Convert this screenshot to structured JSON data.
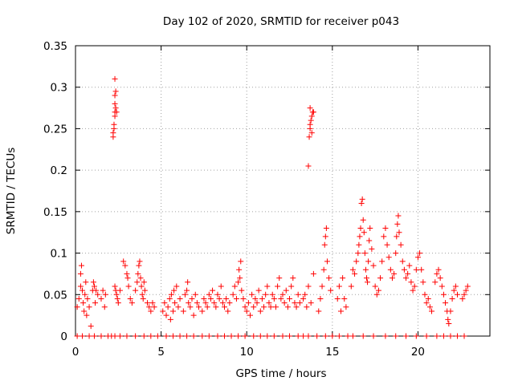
{
  "chart_data": {
    "type": "scatter",
    "title": "Day 102 of 2020, SRMTID for receiver p043",
    "xlabel": "GPS time / hours",
    "ylabel": "SRMTID / TECUs",
    "xlim": [
      0,
      24.2
    ],
    "ylim": [
      0,
      0.35
    ],
    "xticks": [
      0,
      5,
      10,
      15,
      20
    ],
    "xtick_labels": [
      "0",
      "5",
      "10",
      "15",
      "20"
    ],
    "yticks": [
      0,
      0.05,
      0.1,
      0.15,
      0.2,
      0.25,
      0.3,
      0.35
    ],
    "ytick_labels": [
      "0",
      "0.05",
      "0.1",
      "0.15",
      "0.2",
      "0.25",
      "0.3",
      "0.35"
    ],
    "grid": true,
    "marker": "+",
    "color": "#ff0000",
    "series": [
      {
        "name": "SRMTID",
        "points": [
          [
            0.1,
            0.035
          ],
          [
            0.2,
            0.045
          ],
          [
            0.3,
            0.06
          ],
          [
            0.3,
            0.075
          ],
          [
            0.35,
            0.085
          ],
          [
            0.4,
            0.055
          ],
          [
            0.45,
            0.04
          ],
          [
            0.5,
            0.03
          ],
          [
            0.55,
            0.05
          ],
          [
            0.6,
            0.065
          ],
          [
            0.65,
            0.025
          ],
          [
            0.7,
            0.045
          ],
          [
            0.8,
            0.035
          ],
          [
            0.9,
            0.012
          ],
          [
            1.0,
            0.055
          ],
          [
            1.05,
            0.065
          ],
          [
            1.1,
            0.06
          ],
          [
            1.15,
            0.04
          ],
          [
            1.2,
            0.055
          ],
          [
            1.3,
            0.05
          ],
          [
            1.5,
            0.045
          ],
          [
            1.6,
            0.055
          ],
          [
            1.7,
            0.035
          ],
          [
            1.75,
            0.05
          ],
          [
            2.2,
            0.24
          ],
          [
            2.2,
            0.245
          ],
          [
            2.25,
            0.25
          ],
          [
            2.25,
            0.255
          ],
          [
            2.3,
            0.265
          ],
          [
            2.3,
            0.27
          ],
          [
            2.35,
            0.275
          ],
          [
            2.3,
            0.28
          ],
          [
            2.3,
            0.29
          ],
          [
            2.35,
            0.295
          ],
          [
            2.3,
            0.31
          ],
          [
            2.4,
            0.27
          ],
          [
            2.3,
            0.06
          ],
          [
            2.35,
            0.055
          ],
          [
            2.4,
            0.05
          ],
          [
            2.45,
            0.045
          ],
          [
            2.5,
            0.04
          ],
          [
            2.6,
            0.055
          ],
          [
            2.8,
            0.09
          ],
          [
            2.9,
            0.085
          ],
          [
            3.0,
            0.075
          ],
          [
            3.05,
            0.07
          ],
          [
            3.1,
            0.06
          ],
          [
            3.2,
            0.045
          ],
          [
            3.3,
            0.04
          ],
          [
            3.5,
            0.055
          ],
          [
            3.6,
            0.065
          ],
          [
            3.65,
            0.075
          ],
          [
            3.7,
            0.085
          ],
          [
            3.75,
            0.09
          ],
          [
            3.8,
            0.07
          ],
          [
            3.85,
            0.06
          ],
          [
            3.9,
            0.05
          ],
          [
            3.95,
            0.045
          ],
          [
            4.0,
            0.065
          ],
          [
            4.05,
            0.055
          ],
          [
            4.2,
            0.04
          ],
          [
            4.3,
            0.035
          ],
          [
            4.4,
            0.03
          ],
          [
            4.5,
            0.04
          ],
          [
            4.6,
            0.035
          ],
          [
            5.1,
            0.03
          ],
          [
            5.2,
            0.04
          ],
          [
            5.3,
            0.025
          ],
          [
            5.4,
            0.035
          ],
          [
            5.5,
            0.045
          ],
          [
            5.55,
            0.02
          ],
          [
            5.6,
            0.05
          ],
          [
            5.7,
            0.03
          ],
          [
            5.75,
            0.055
          ],
          [
            5.8,
            0.04
          ],
          [
            5.9,
            0.06
          ],
          [
            6.0,
            0.035
          ],
          [
            6.1,
            0.045
          ],
          [
            6.3,
            0.03
          ],
          [
            6.4,
            0.05
          ],
          [
            6.5,
            0.055
          ],
          [
            6.55,
            0.065
          ],
          [
            6.6,
            0.04
          ],
          [
            6.7,
            0.035
          ],
          [
            6.8,
            0.045
          ],
          [
            6.9,
            0.025
          ],
          [
            7.0,
            0.05
          ],
          [
            7.1,
            0.04
          ],
          [
            7.2,
            0.035
          ],
          [
            7.4,
            0.03
          ],
          [
            7.5,
            0.045
          ],
          [
            7.6,
            0.04
          ],
          [
            7.7,
            0.035
          ],
          [
            7.8,
            0.05
          ],
          [
            7.9,
            0.045
          ],
          [
            8.0,
            0.055
          ],
          [
            8.1,
            0.04
          ],
          [
            8.2,
            0.035
          ],
          [
            8.3,
            0.05
          ],
          [
            8.4,
            0.045
          ],
          [
            8.5,
            0.06
          ],
          [
            8.6,
            0.04
          ],
          [
            8.7,
            0.035
          ],
          [
            8.8,
            0.045
          ],
          [
            8.9,
            0.03
          ],
          [
            9.0,
            0.04
          ],
          [
            9.2,
            0.05
          ],
          [
            9.3,
            0.06
          ],
          [
            9.4,
            0.045
          ],
          [
            9.5,
            0.065
          ],
          [
            9.55,
            0.08
          ],
          [
            9.6,
            0.07
          ],
          [
            9.65,
            0.09
          ],
          [
            9.7,
            0.055
          ],
          [
            9.8,
            0.045
          ],
          [
            9.9,
            0.035
          ],
          [
            10.0,
            0.03
          ],
          [
            10.1,
            0.04
          ],
          [
            10.2,
            0.025
          ],
          [
            10.3,
            0.05
          ],
          [
            10.4,
            0.035
          ],
          [
            10.5,
            0.045
          ],
          [
            10.6,
            0.04
          ],
          [
            10.7,
            0.055
          ],
          [
            10.8,
            0.03
          ],
          [
            10.9,
            0.045
          ],
          [
            11.0,
            0.035
          ],
          [
            11.1,
            0.05
          ],
          [
            11.2,
            0.06
          ],
          [
            11.3,
            0.04
          ],
          [
            11.4,
            0.035
          ],
          [
            11.5,
            0.05
          ],
          [
            11.6,
            0.045
          ],
          [
            11.7,
            0.035
          ],
          [
            11.8,
            0.06
          ],
          [
            11.9,
            0.07
          ],
          [
            12.0,
            0.045
          ],
          [
            12.1,
            0.05
          ],
          [
            12.2,
            0.04
          ],
          [
            12.3,
            0.055
          ],
          [
            12.4,
            0.035
          ],
          [
            12.5,
            0.045
          ],
          [
            12.6,
            0.06
          ],
          [
            12.7,
            0.07
          ],
          [
            12.8,
            0.04
          ],
          [
            12.9,
            0.035
          ],
          [
            13.0,
            0.05
          ],
          [
            13.1,
            0.04
          ],
          [
            13.3,
            0.045
          ],
          [
            13.4,
            0.05
          ],
          [
            13.5,
            0.035
          ],
          [
            13.6,
            0.06
          ],
          [
            13.75,
            0.04
          ],
          [
            13.9,
            0.075
          ],
          [
            13.6,
            0.205
          ],
          [
            13.65,
            0.24
          ],
          [
            13.7,
            0.25
          ],
          [
            13.7,
            0.255
          ],
          [
            13.75,
            0.26
          ],
          [
            13.8,
            0.265
          ],
          [
            13.85,
            0.27
          ],
          [
            13.7,
            0.275
          ],
          [
            13.8,
            0.245
          ],
          [
            13.9,
            0.27
          ],
          [
            14.2,
            0.03
          ],
          [
            14.3,
            0.045
          ],
          [
            14.4,
            0.06
          ],
          [
            14.5,
            0.08
          ],
          [
            14.55,
            0.11
          ],
          [
            14.6,
            0.12
          ],
          [
            14.65,
            0.13
          ],
          [
            14.7,
            0.09
          ],
          [
            14.8,
            0.07
          ],
          [
            14.9,
            0.055
          ],
          [
            15.3,
            0.045
          ],
          [
            15.4,
            0.06
          ],
          [
            15.5,
            0.03
          ],
          [
            15.6,
            0.07
          ],
          [
            15.7,
            0.045
          ],
          [
            15.8,
            0.035
          ],
          [
            16.1,
            0.06
          ],
          [
            16.2,
            0.08
          ],
          [
            16.3,
            0.075
          ],
          [
            16.4,
            0.09
          ],
          [
            16.5,
            0.1
          ],
          [
            16.55,
            0.11
          ],
          [
            16.6,
            0.12
          ],
          [
            16.65,
            0.13
          ],
          [
            16.7,
            0.16
          ],
          [
            16.75,
            0.165
          ],
          [
            16.8,
            0.14
          ],
          [
            16.85,
            0.125
          ],
          [
            16.9,
            0.1
          ],
          [
            16.95,
            0.08
          ],
          [
            17.0,
            0.07
          ],
          [
            17.05,
            0.065
          ],
          [
            17.1,
            0.09
          ],
          [
            17.15,
            0.115
          ],
          [
            17.2,
            0.13
          ],
          [
            17.3,
            0.105
          ],
          [
            17.4,
            0.085
          ],
          [
            17.5,
            0.06
          ],
          [
            17.6,
            0.05
          ],
          [
            17.7,
            0.055
          ],
          [
            17.8,
            0.07
          ],
          [
            17.9,
            0.09
          ],
          [
            18.0,
            0.12
          ],
          [
            18.1,
            0.13
          ],
          [
            18.2,
            0.11
          ],
          [
            18.3,
            0.095
          ],
          [
            18.4,
            0.08
          ],
          [
            18.5,
            0.07
          ],
          [
            18.6,
            0.075
          ],
          [
            18.7,
            0.1
          ],
          [
            18.75,
            0.12
          ],
          [
            18.8,
            0.135
          ],
          [
            18.85,
            0.145
          ],
          [
            18.9,
            0.125
          ],
          [
            19.0,
            0.11
          ],
          [
            19.1,
            0.09
          ],
          [
            19.2,
            0.08
          ],
          [
            19.3,
            0.07
          ],
          [
            19.4,
            0.075
          ],
          [
            19.5,
            0.085
          ],
          [
            19.6,
            0.065
          ],
          [
            19.7,
            0.055
          ],
          [
            19.8,
            0.06
          ],
          [
            19.9,
            0.08
          ],
          [
            20.0,
            0.095
          ],
          [
            20.1,
            0.1
          ],
          [
            20.2,
            0.08
          ],
          [
            20.3,
            0.065
          ],
          [
            20.4,
            0.05
          ],
          [
            20.5,
            0.04
          ],
          [
            20.6,
            0.045
          ],
          [
            20.7,
            0.035
          ],
          [
            20.8,
            0.03
          ],
          [
            21.0,
            0.065
          ],
          [
            21.1,
            0.075
          ],
          [
            21.2,
            0.08
          ],
          [
            21.3,
            0.07
          ],
          [
            21.4,
            0.06
          ],
          [
            21.5,
            0.05
          ],
          [
            21.6,
            0.04
          ],
          [
            21.7,
            0.03
          ],
          [
            21.75,
            0.02
          ],
          [
            21.8,
            0.015
          ],
          [
            21.9,
            0.03
          ],
          [
            22.0,
            0.045
          ],
          [
            22.1,
            0.055
          ],
          [
            22.2,
            0.06
          ],
          [
            22.3,
            0.05
          ],
          [
            22.6,
            0.045
          ],
          [
            22.7,
            0.05
          ],
          [
            22.8,
            0.055
          ],
          [
            22.9,
            0.06
          ],
          [
            0.1,
            0.0
          ],
          [
            0.4,
            0.0
          ],
          [
            0.8,
            0.0
          ],
          [
            1.1,
            0.0
          ],
          [
            1.5,
            0.0
          ],
          [
            1.9,
            0.0
          ],
          [
            2.1,
            0.0
          ],
          [
            2.3,
            0.0
          ],
          [
            2.6,
            0.0
          ],
          [
            3.0,
            0.0
          ],
          [
            3.5,
            0.0
          ],
          [
            4.0,
            0.0
          ],
          [
            4.4,
            0.0
          ],
          [
            4.8,
            0.0
          ],
          [
            5.3,
            0.0
          ],
          [
            5.7,
            0.0
          ],
          [
            6.1,
            0.0
          ],
          [
            6.5,
            0.0
          ],
          [
            6.9,
            0.0
          ],
          [
            7.4,
            0.0
          ],
          [
            7.8,
            0.0
          ],
          [
            8.3,
            0.0
          ],
          [
            8.7,
            0.0
          ],
          [
            9.1,
            0.0
          ],
          [
            9.5,
            0.0
          ],
          [
            9.9,
            0.0
          ],
          [
            10.4,
            0.0
          ],
          [
            10.8,
            0.0
          ],
          [
            11.2,
            0.0
          ],
          [
            11.6,
            0.0
          ],
          [
            12.1,
            0.0
          ],
          [
            12.5,
            0.0
          ],
          [
            13.0,
            0.0
          ],
          [
            13.3,
            0.0
          ],
          [
            13.6,
            0.0
          ],
          [
            14.1,
            0.0
          ],
          [
            14.6,
            0.0
          ],
          [
            15.0,
            0.0
          ],
          [
            15.4,
            0.0
          ],
          [
            15.9,
            0.0
          ],
          [
            16.2,
            0.0
          ],
          [
            16.8,
            0.0
          ],
          [
            17.4,
            0.0
          ],
          [
            18.1,
            0.0
          ],
          [
            18.7,
            0.0
          ],
          [
            19.3,
            0.0
          ],
          [
            19.9,
            0.0
          ],
          [
            20.5,
            0.0
          ],
          [
            21.1,
            0.0
          ],
          [
            21.5,
            0.0
          ],
          [
            21.9,
            0.0
          ],
          [
            22.3,
            0.0
          ],
          [
            22.7,
            0.0
          ]
        ]
      }
    ]
  }
}
